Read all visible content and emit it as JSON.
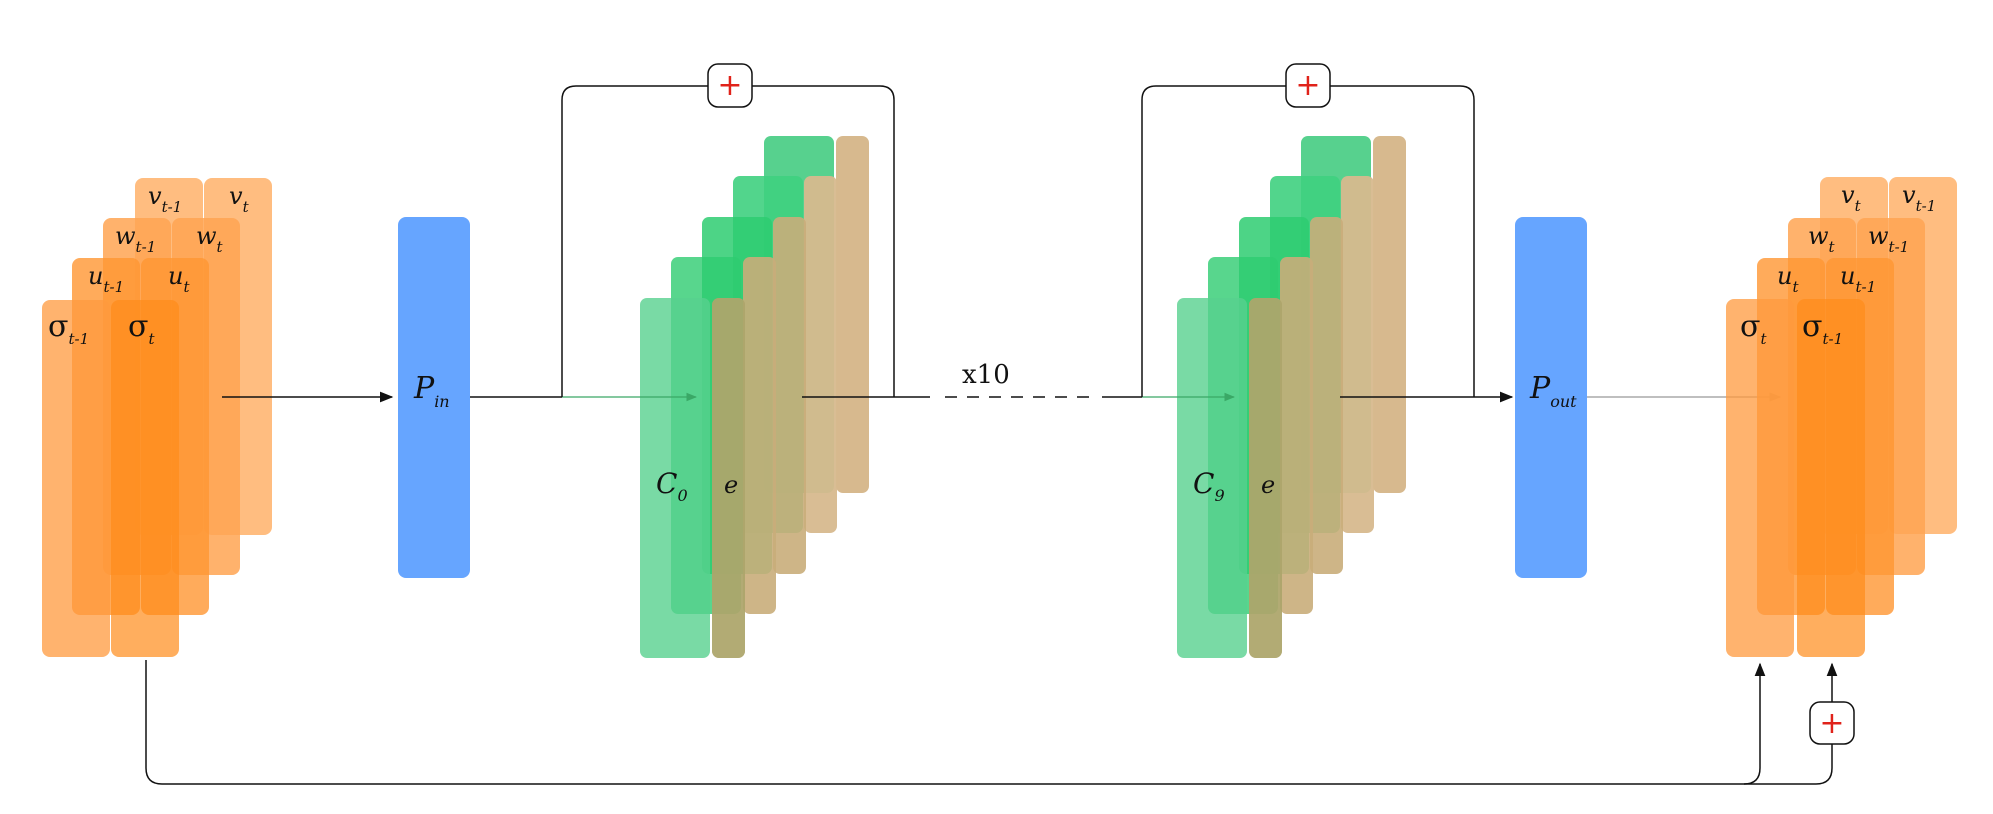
{
  "input_stack": {
    "labels": [
      "v",
      "v",
      "w",
      "w",
      "u",
      "u",
      "σ",
      "σ"
    ],
    "subs": [
      "t-1",
      "t",
      "t-1",
      "t",
      "t-1",
      "t",
      "t-1",
      "t"
    ]
  },
  "output_stack": {
    "labels": [
      "v",
      "v",
      "w",
      "w",
      "u",
      "u",
      "σ",
      "σ"
    ],
    "subs": [
      "t",
      "t-1",
      "t",
      "t-1",
      "t",
      "t-1",
      "t",
      "t-1"
    ]
  },
  "p_in": {
    "label": "P",
    "sub": "in"
  },
  "p_out": {
    "label": "P",
    "sub": "out"
  },
  "block_first": {
    "c_label": "C",
    "c_sub": "0",
    "e_label": "e"
  },
  "block_last": {
    "c_label": "C",
    "c_sub": "9",
    "e_label": "e"
  },
  "repeat_label": "x10",
  "plus_symbol": "+",
  "colors": {
    "orange_light": "#ffb672",
    "orange_dark": "#ff8c1a",
    "blue": "#66a5ff",
    "green": "#57d18e",
    "green_dark": "#2ecc71",
    "tan": "#d7b98e",
    "plus": "#e0221a"
  }
}
